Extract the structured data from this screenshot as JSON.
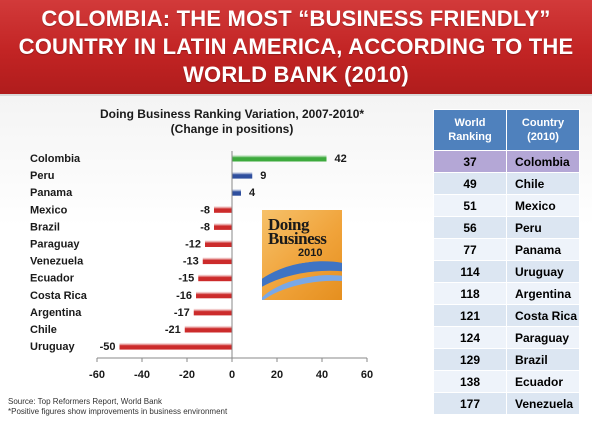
{
  "banner": {
    "line1": "COLOMBIA: THE MOST “BUSINESS FRIENDLY”",
    "line2": "COUNTRY IN LATIN AMERICA, ACCORDING TO THE",
    "line3": "WORLD BANK (2010)"
  },
  "chart_data": {
    "type": "bar",
    "orientation": "horizontal",
    "title": "Doing Business Ranking Variation, 2007-2010*",
    "subtitle": "(Change in positions)",
    "categories": [
      "Colombia",
      "Peru",
      "Panama",
      "Mexico",
      "Brazil",
      "Paraguay",
      "Venezuela",
      "Ecuador",
      "Costa Rica",
      "Argentina",
      "Chile",
      "Uruguay"
    ],
    "values": [
      42,
      9,
      4,
      -8,
      -8,
      -12,
      -13,
      -15,
      -16,
      -17,
      -21,
      -50
    ],
    "xlim": [
      -60,
      60
    ],
    "xticks": [
      -60,
      -40,
      -20,
      0,
      20,
      40,
      60
    ],
    "colors": {
      "first": "#3daa3d",
      "positive": "#2f4f9e",
      "negative": "#cc2b2b"
    },
    "grid": false,
    "legend": "none"
  },
  "logo": {
    "line1": "Doing",
    "line2": "Business",
    "year": "2010"
  },
  "table": {
    "headers": [
      "World Ranking",
      "Country (2010)"
    ],
    "rows": [
      {
        "rank": "37",
        "country": "Colombia"
      },
      {
        "rank": "49",
        "country": "Chile"
      },
      {
        "rank": "51",
        "country": "Mexico"
      },
      {
        "rank": "56",
        "country": "Peru"
      },
      {
        "rank": "77",
        "country": "Panama"
      },
      {
        "rank": "114",
        "country": "Uruguay"
      },
      {
        "rank": "118",
        "country": "Argentina"
      },
      {
        "rank": "121",
        "country": "Costa Rica"
      },
      {
        "rank": "124",
        "country": "Paraguay"
      },
      {
        "rank": "129",
        "country": "Brazil"
      },
      {
        "rank": "138",
        "country": "Ecuador"
      },
      {
        "rank": "177",
        "country": "Venezuela"
      }
    ],
    "highlight_color": "#b4a7d6"
  },
  "source": {
    "line1": "Source: Top Reformers Report,  World Bank",
    "line2": "*Positive figures show improvements in business environment"
  }
}
